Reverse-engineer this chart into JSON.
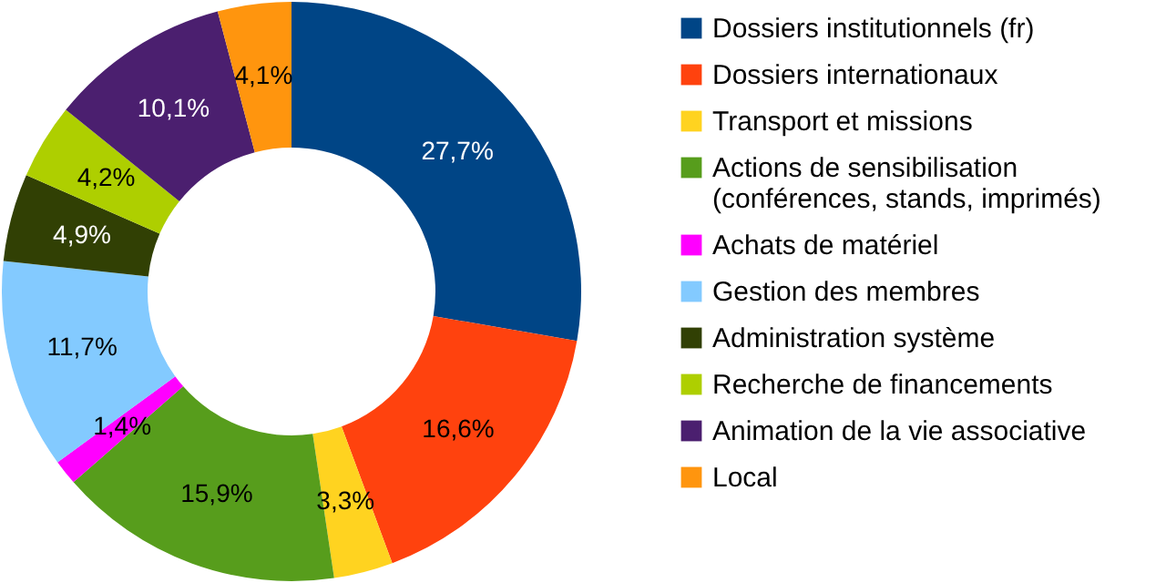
{
  "chart_data": {
    "type": "donut",
    "categories": [
      "Dossiers institutionnels (fr)",
      "Dossiers internationaux",
      "Transport et missions",
      "Actions de sensibilisation (conférences, stands, imprimés)",
      "Achats de matériel",
      "Gestion des membres",
      "Administration système",
      "Recherche de financements",
      "Animation de la vie associative",
      "Local"
    ],
    "values": [
      27.7,
      16.6,
      3.3,
      15.9,
      1.4,
      11.7,
      4.9,
      4.2,
      10.1,
      4.1
    ],
    "value_labels": [
      "27,7%",
      "16,6%",
      "3,3%",
      "15,9%",
      "1,4%",
      "11,7%",
      "4,9%",
      "4,2%",
      "10,1%",
      "4,1%"
    ],
    "colors": [
      "#004586",
      "#ff420e",
      "#ffd320",
      "#579d1c",
      "#ff00ff",
      "#83caff",
      "#314004",
      "#aecf00",
      "#4b1f6f",
      "#ff950e"
    ],
    "legend": "right"
  }
}
